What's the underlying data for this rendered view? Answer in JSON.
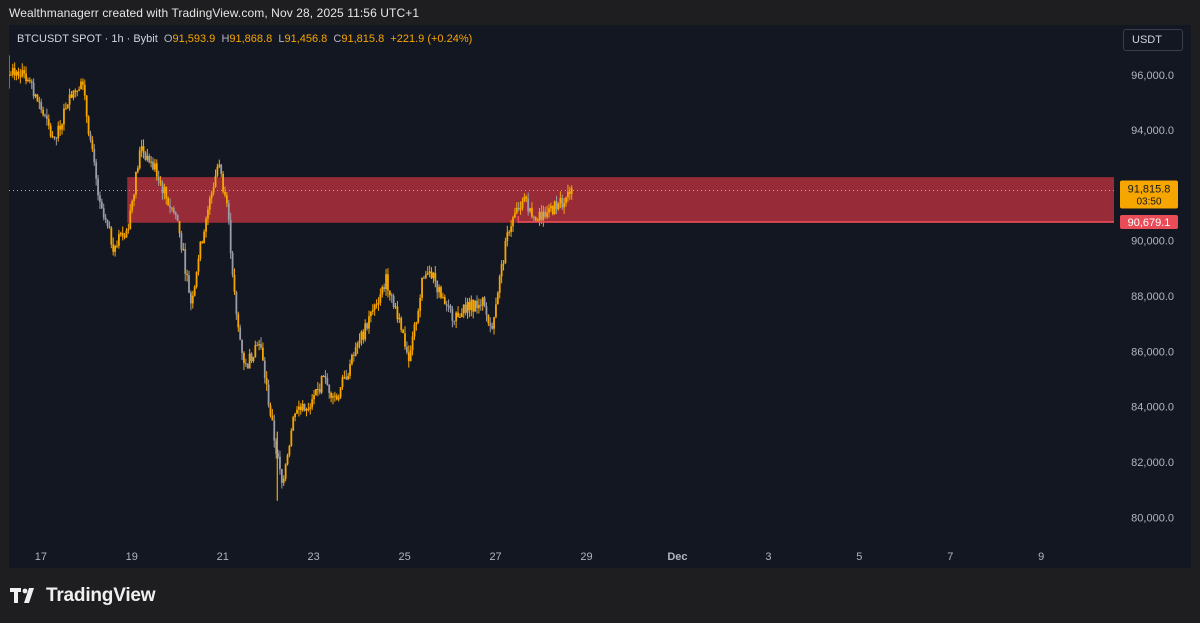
{
  "caption": "Wealthmanagerr created with TradingView.com, Nov 28, 2025 11:56 UTC+1",
  "legend": {
    "symbol": "BTCUSDT SPOT · 1h · Bybit",
    "open_label": "O",
    "open": "91,593.9",
    "high_label": "H",
    "high": "91,868.8",
    "low_label": "L",
    "low": "91,456.8",
    "close_label": "C",
    "close": "91,815.8",
    "change": "+221.9 (+0.24%)"
  },
  "currency_button": "USDT",
  "brand": "TradingView",
  "colors": {
    "background": "#131722",
    "candle": "#f7a600",
    "candle_alt": "#9a9da8",
    "zone": "#b5303c",
    "support_line": "#e84c57",
    "price_tag": "#f7a600",
    "level_tag": "#e84c57"
  },
  "chart_data": {
    "type": "candlestick",
    "y_unit": "USDT",
    "ylim": [
      79000,
      97800
    ],
    "y_ticks": [
      "96,000.0",
      "94,000.0",
      "90,000.0",
      "88,000.0",
      "86,000.0",
      "84,000.0",
      "82,000.0",
      "80,000.0"
    ],
    "y_tick_values": [
      96000,
      94000,
      90000,
      88000,
      86000,
      84000,
      82000,
      80000
    ],
    "x_ticks": [
      "17",
      "19",
      "21",
      "23",
      "25",
      "27",
      "29",
      "Dec",
      "3",
      "5",
      "7",
      "9"
    ],
    "x_tick_days": [
      17,
      19,
      21,
      23,
      25,
      27,
      29,
      31,
      33,
      35,
      37,
      39
    ],
    "x_range_days": [
      16.3,
      40.6
    ],
    "path_points": [
      [
        16.3,
        96000
      ],
      [
        16.6,
        96200
      ],
      [
        17.0,
        94800
      ],
      [
        17.3,
        93500
      ],
      [
        17.6,
        95200
      ],
      [
        17.9,
        95800
      ],
      [
        18.1,
        93500
      ],
      [
        18.3,
        91200
      ],
      [
        18.6,
        89800
      ],
      [
        18.9,
        90400
      ],
      [
        19.2,
        93400
      ],
      [
        19.5,
        92600
      ],
      [
        19.8,
        91400
      ],
      [
        20.0,
        90800
      ],
      [
        20.3,
        87800
      ],
      [
        20.6,
        90600
      ],
      [
        20.9,
        92800
      ],
      [
        21.1,
        91300
      ],
      [
        21.3,
        87200
      ],
      [
        21.5,
        85400
      ],
      [
        21.8,
        86500
      ],
      [
        22.1,
        83200
      ],
      [
        22.3,
        81200
      ],
      [
        22.6,
        84000
      ],
      [
        22.9,
        83800
      ],
      [
        23.2,
        85000
      ],
      [
        23.5,
        84300
      ],
      [
        23.8,
        85500
      ],
      [
        24.1,
        86700
      ],
      [
        24.3,
        87500
      ],
      [
        24.6,
        88600
      ],
      [
        24.9,
        87100
      ],
      [
        25.1,
        85600
      ],
      [
        25.4,
        88600
      ],
      [
        25.6,
        88900
      ],
      [
        25.9,
        87500
      ],
      [
        26.1,
        87300
      ],
      [
        26.4,
        87600
      ],
      [
        26.7,
        87800
      ],
      [
        26.9,
        86800
      ],
      [
        27.1,
        88700
      ],
      [
        27.3,
        90500
      ],
      [
        27.6,
        91500
      ],
      [
        27.9,
        90800
      ],
      [
        28.2,
        91100
      ],
      [
        28.5,
        91500
      ],
      [
        28.7,
        91800
      ]
    ],
    "extremes": {
      "high_day": 16.3,
      "high": 96700,
      "low_day": 22.2,
      "low": 80600
    },
    "resistance_zone": {
      "from": 90650,
      "to": 92300,
      "start_day": 18.9
    },
    "support_level": {
      "value": 90679.1,
      "label": "90,679.1",
      "start_day": 27.5
    },
    "last_price": {
      "value": 91815.8,
      "label": "91,815.8",
      "countdown": "03:50"
    },
    "grid": false
  }
}
